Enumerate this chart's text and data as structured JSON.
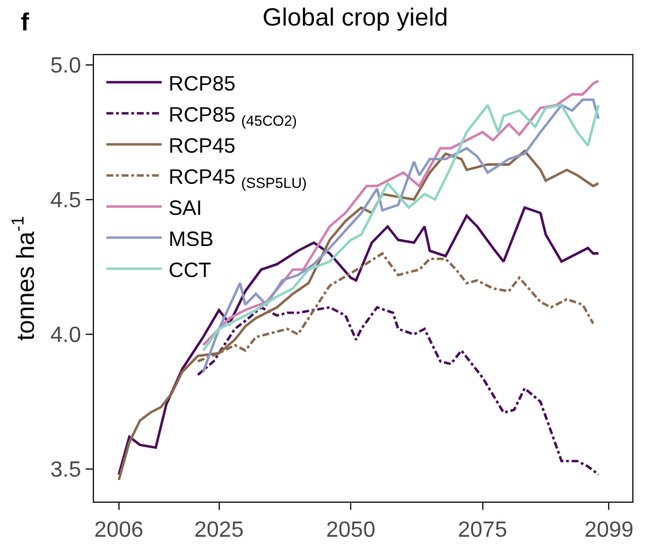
{
  "chart_data": {
    "type": "line",
    "title": "Global crop yield",
    "ylabel": "tonnes ha$^{-1}$",
    "annotations": [
      "f"
    ],
    "xlim": [
      2001.3,
      2103.4
    ],
    "xticks": [
      2006,
      2025,
      2050,
      2075,
      2099
    ],
    "ylim": [
      3.38,
      5.035
    ],
    "yticks": [
      {
        "value": 3.5,
        "label": "3.5"
      },
      {
        "value": 4.0,
        "label": "4.0"
      },
      {
        "value": 4.5,
        "label": "4.5"
      },
      {
        "value": 5.0,
        "label": "5.0"
      }
    ],
    "legend": "top left",
    "marker": "none",
    "series": [
      {
        "name": "RCP85",
        "color": "#4b0a5c",
        "line_style": "solid",
        "x": [
          2006,
          2008,
          2010,
          2013,
          2015,
          2018,
          2020,
          2022,
          2025,
          2027,
          2030,
          2033,
          2036,
          2040,
          2043,
          2046,
          2050,
          2051,
          2054,
          2057,
          2059,
          2062,
          2064,
          2065,
          2068,
          2072,
          2074,
          2077,
          2079,
          2083,
          2086,
          2087,
          2090,
          2093,
          2095,
          2096,
          2097
        ],
        "values": [
          3.48,
          3.62,
          3.59,
          3.58,
          3.74,
          3.87,
          3.93,
          3.99,
          4.09,
          4.04,
          4.16,
          4.24,
          4.26,
          4.31,
          4.34,
          4.3,
          4.21,
          4.2,
          4.34,
          4.4,
          4.35,
          4.34,
          4.4,
          4.31,
          4.29,
          4.44,
          4.4,
          4.32,
          4.27,
          4.47,
          4.45,
          4.37,
          4.27,
          4.3,
          4.32,
          4.3,
          4.3
        ]
      },
      {
        "name": "RCP85 $_{(45CO2)}$",
        "color": "#4b0a5c",
        "line_style": "dashed",
        "x": [
          2021,
          2024,
          2028,
          2030,
          2033,
          2036,
          2038,
          2040,
          2046,
          2049,
          2051,
          2052,
          2055,
          2058,
          2059,
          2062,
          2064,
          2067,
          2069,
          2071,
          2075,
          2079,
          2081,
          2083,
          2086,
          2088,
          2090,
          2093,
          2095,
          2097
        ],
        "values": [
          3.85,
          3.9,
          4.02,
          4.05,
          4.1,
          4.07,
          4.08,
          4.08,
          4.1,
          4.07,
          3.98,
          4.02,
          4.1,
          4.08,
          4.02,
          4.0,
          4.02,
          3.9,
          3.89,
          3.94,
          3.84,
          3.71,
          3.72,
          3.8,
          3.75,
          3.64,
          3.53,
          3.53,
          3.51,
          3.48
        ]
      },
      {
        "name": "RCP45",
        "color": "#8b6a4f",
        "line_style": "solid",
        "x": [
          2006,
          2008,
          2010,
          2012,
          2014,
          2016,
          2018,
          2021,
          2025,
          2028,
          2030,
          2032,
          2036,
          2039,
          2042,
          2046,
          2049,
          2052,
          2054,
          2056,
          2059,
          2062,
          2065,
          2068,
          2071,
          2072,
          2076,
          2080,
          2083,
          2086,
          2087,
          2091,
          2093,
          2096,
          2097
        ],
        "values": [
          3.46,
          3.6,
          3.68,
          3.71,
          3.73,
          3.78,
          3.86,
          3.92,
          3.93,
          3.98,
          4.03,
          4.06,
          4.1,
          4.15,
          4.19,
          4.35,
          4.42,
          4.47,
          4.45,
          4.52,
          4.51,
          4.5,
          4.6,
          4.67,
          4.65,
          4.61,
          4.63,
          4.63,
          4.68,
          4.61,
          4.57,
          4.61,
          4.59,
          4.55,
          4.56
        ]
      },
      {
        "name": "RCP45 $_{(SSP5LU)}$",
        "color": "#8b6a4f",
        "line_style": "dashed",
        "x": [
          2021,
          2025,
          2028,
          2030,
          2032,
          2038,
          2040,
          2043,
          2046,
          2052,
          2056,
          2059,
          2063,
          2065,
          2068,
          2070,
          2072,
          2074,
          2077,
          2080,
          2082,
          2086,
          2088,
          2091,
          2094,
          2096
        ],
        "values": [
          3.9,
          3.93,
          3.96,
          3.94,
          3.99,
          4.02,
          4.0,
          4.09,
          4.18,
          4.25,
          4.3,
          4.22,
          4.24,
          4.28,
          4.28,
          4.24,
          4.19,
          4.2,
          4.17,
          4.16,
          4.21,
          4.12,
          4.1,
          4.13,
          4.11,
          4.04
        ]
      },
      {
        "name": "SAI",
        "color": "#d47fb0",
        "line_style": "solid",
        "x": [
          2022,
          2025,
          2027,
          2030,
          2034,
          2037,
          2039,
          2041,
          2046,
          2049,
          2053,
          2055,
          2058,
          2060,
          2063,
          2067,
          2069,
          2073,
          2075,
          2077,
          2080,
          2082,
          2086,
          2089,
          2092,
          2094,
          2096,
          2097
        ],
        "values": [
          3.96,
          4.02,
          4.06,
          4.09,
          4.12,
          4.19,
          4.24,
          4.24,
          4.4,
          4.45,
          4.55,
          4.55,
          4.58,
          4.6,
          4.55,
          4.69,
          4.69,
          4.73,
          4.75,
          4.72,
          4.78,
          4.74,
          4.84,
          4.85,
          4.89,
          4.89,
          4.93,
          4.94
        ]
      },
      {
        "name": "MSB",
        "color": "#8a9ac4",
        "line_style": "solid",
        "x": [
          2022,
          2025,
          2029,
          2030,
          2032,
          2034,
          2037,
          2040,
          2043,
          2046,
          2052,
          2055,
          2056,
          2059,
          2062,
          2063,
          2065,
          2068,
          2072,
          2074,
          2076,
          2080,
          2083,
          2086,
          2090,
          2092,
          2094,
          2096,
          2097
        ],
        "values": [
          3.86,
          4.02,
          4.19,
          4.11,
          4.15,
          4.11,
          4.2,
          4.22,
          4.26,
          4.32,
          4.45,
          4.54,
          4.46,
          4.48,
          4.64,
          4.59,
          4.65,
          4.65,
          4.69,
          4.66,
          4.6,
          4.65,
          4.67,
          4.75,
          4.85,
          4.83,
          4.87,
          4.87,
          4.8
        ]
      },
      {
        "name": "CCT",
        "color": "#8fd6c4",
        "line_style": "solid",
        "x": [
          2022,
          2025,
          2029,
          2032,
          2036,
          2039,
          2042,
          2046,
          2050,
          2052,
          2057,
          2061,
          2064,
          2066,
          2069,
          2072,
          2076,
          2078,
          2079,
          2082,
          2085,
          2087,
          2090,
          2093,
          2095,
          2097
        ],
        "values": [
          3.94,
          4.02,
          4.06,
          4.09,
          4.14,
          4.17,
          4.24,
          4.27,
          4.35,
          4.37,
          4.56,
          4.47,
          4.52,
          4.5,
          4.62,
          4.75,
          4.85,
          4.75,
          4.81,
          4.83,
          4.77,
          4.84,
          4.85,
          4.75,
          4.7,
          4.85
        ]
      }
    ]
  }
}
